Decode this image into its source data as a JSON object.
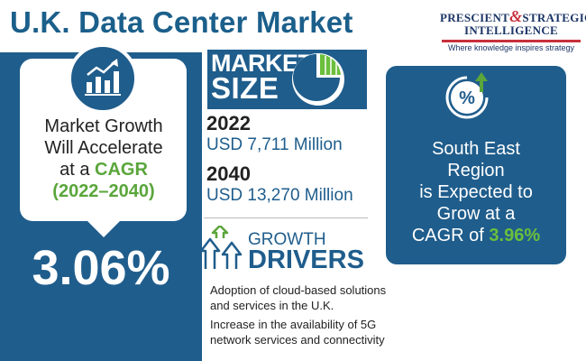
{
  "header": {
    "title": "U.K. Data Center Market"
  },
  "logo": {
    "word1": "PRESCIENT",
    "amp": "&",
    "word2": "STRATEGIC",
    "line2": "INTELLIGENCE",
    "tagline": "Where knowledge inspires strategy"
  },
  "growth": {
    "line1": "Market Growth",
    "line2": "Will Accelerate",
    "line3_prefix": "at a ",
    "line3_emph": "CAGR",
    "period": "(2022–2040)",
    "cagr": "3.06%"
  },
  "market_size": {
    "label_line1": "MARKET",
    "label_line2": "SIZE",
    "entries": [
      {
        "year": "2022",
        "value": "USD 7,711 Million"
      },
      {
        "year": "2040",
        "value": "USD 13,270 Million"
      }
    ]
  },
  "drivers": {
    "label_line1": "GROWTH",
    "label_line2": "DRIVERS",
    "items": [
      "Adoption of cloud-based solutions and services in the U.K.",
      "Increase in the availability of 5G network services and connectivity"
    ]
  },
  "region": {
    "line1": "South East",
    "line2": "Region",
    "line3": "is Expected to",
    "line4": "Grow at a",
    "line5_prefix": "CAGR of ",
    "line5_emph": "3.96%"
  },
  "icons": {
    "growth": "bar-chart-up-icon",
    "pie": "pie-chart-icon",
    "percent": "percent-up-icon",
    "drivers": "growth-arrows-icon"
  },
  "colors": {
    "primary": "#1f5d8c",
    "accent_green": "#5aa63b",
    "brand_red": "#c8303c",
    "brand_navy": "#1b3566"
  }
}
